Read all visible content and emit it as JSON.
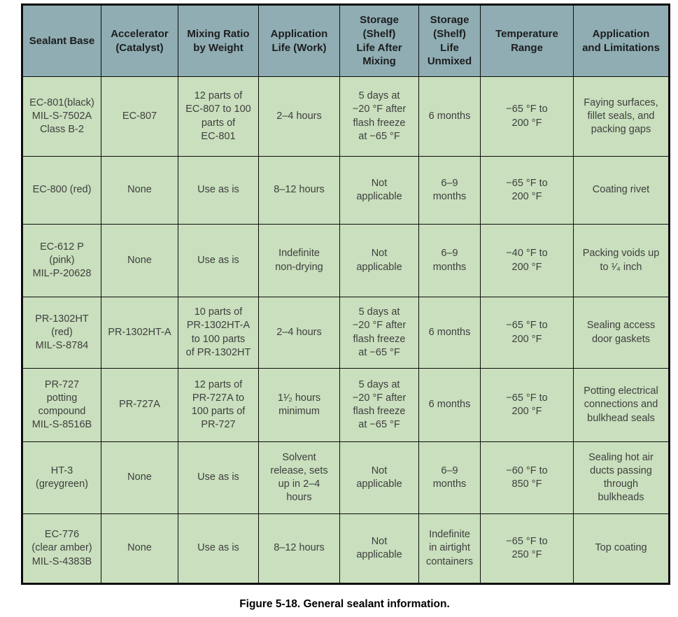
{
  "colors": {
    "header_bg": "#8fadb3",
    "body_bg": "#c9dfbd",
    "border": "#0d0d0d",
    "header_text": "#1d1d1d",
    "body_text": "#3f3f3f"
  },
  "caption": "Figure 5-18. General sealant information.",
  "table": {
    "headers": [
      "Sealant Base",
      "Accelerator\n(Catalyst)",
      "Mixing Ratio\nby Weight",
      "Application\nLife (Work)",
      "Storage\n(Shelf)\nLife After\nMixing",
      "Storage\n(Shelf)\nLife\nUnmixed",
      "Temperature\nRange",
      "Application\nand Limitations"
    ],
    "rows": [
      [
        "EC-801(black)\nMIL-S-7502A\nClass B-2",
        "EC-807",
        "12 parts of\nEC-807 to 100\nparts of\nEC-801",
        "2–4 hours",
        "5 days at\n−20 °F after\nflash freeze\nat −65 °F",
        "6 months",
        "−65 °F to\n200 °F",
        "Faying surfaces,\nfillet seals, and\npacking gaps"
      ],
      [
        "EC-800 (red)",
        "None",
        "Use as is",
        "8–12 hours",
        "Not\napplicable",
        "6–9\nmonths",
        "−65 °F to\n200 °F",
        "Coating rivet"
      ],
      [
        "EC-612 P\n(pink)\nMIL-P-20628",
        "None",
        "Use as is",
        "Indefinite\nnon-drying",
        "Not\napplicable",
        "6–9\nmonths",
        "−40 °F to\n200 °F",
        "Packing voids up\nto ¹⁄₄ inch"
      ],
      [
        "PR-1302HT\n(red)\nMIL-S-8784",
        "PR-1302HT-A",
        "10 parts of\nPR-1302HT-A\nto 100 parts\nof PR-1302HT",
        "2–4 hours",
        "5 days at\n−20 °F after\nflash freeze\nat −65 °F",
        "6 months",
        "−65 °F to\n200 °F",
        "Sealing access\ndoor gaskets"
      ],
      [
        "PR-727\npotting\ncompound\nMIL-S-8516B",
        "PR-727A",
        "12 parts of\nPR-727A to\n100 parts of\nPR-727",
        "1¹⁄₂ hours\nminimum",
        "5 days at\n−20 °F after\nflash freeze\nat −65 °F",
        "6 months",
        "−65 °F to\n200 °F",
        "Potting electrical\nconnections and\nbulkhead seals"
      ],
      [
        "HT-3\n(greygreen)",
        "None",
        "Use as is",
        "Solvent\nrelease, sets\nup in 2–4\nhours",
        "Not\napplicable",
        "6–9\nmonths",
        "−60 °F to\n850 °F",
        "Sealing hot air\nducts passing\nthrough\nbulkheads"
      ],
      [
        "EC-776\n(clear amber)\nMIL-S-4383B",
        "None",
        "Use as is",
        "8–12 hours",
        "Not\napplicable",
        "Indefinite\nin airtight\ncontainers",
        "−65 °F to\n250 °F",
        "Top coating"
      ]
    ]
  }
}
